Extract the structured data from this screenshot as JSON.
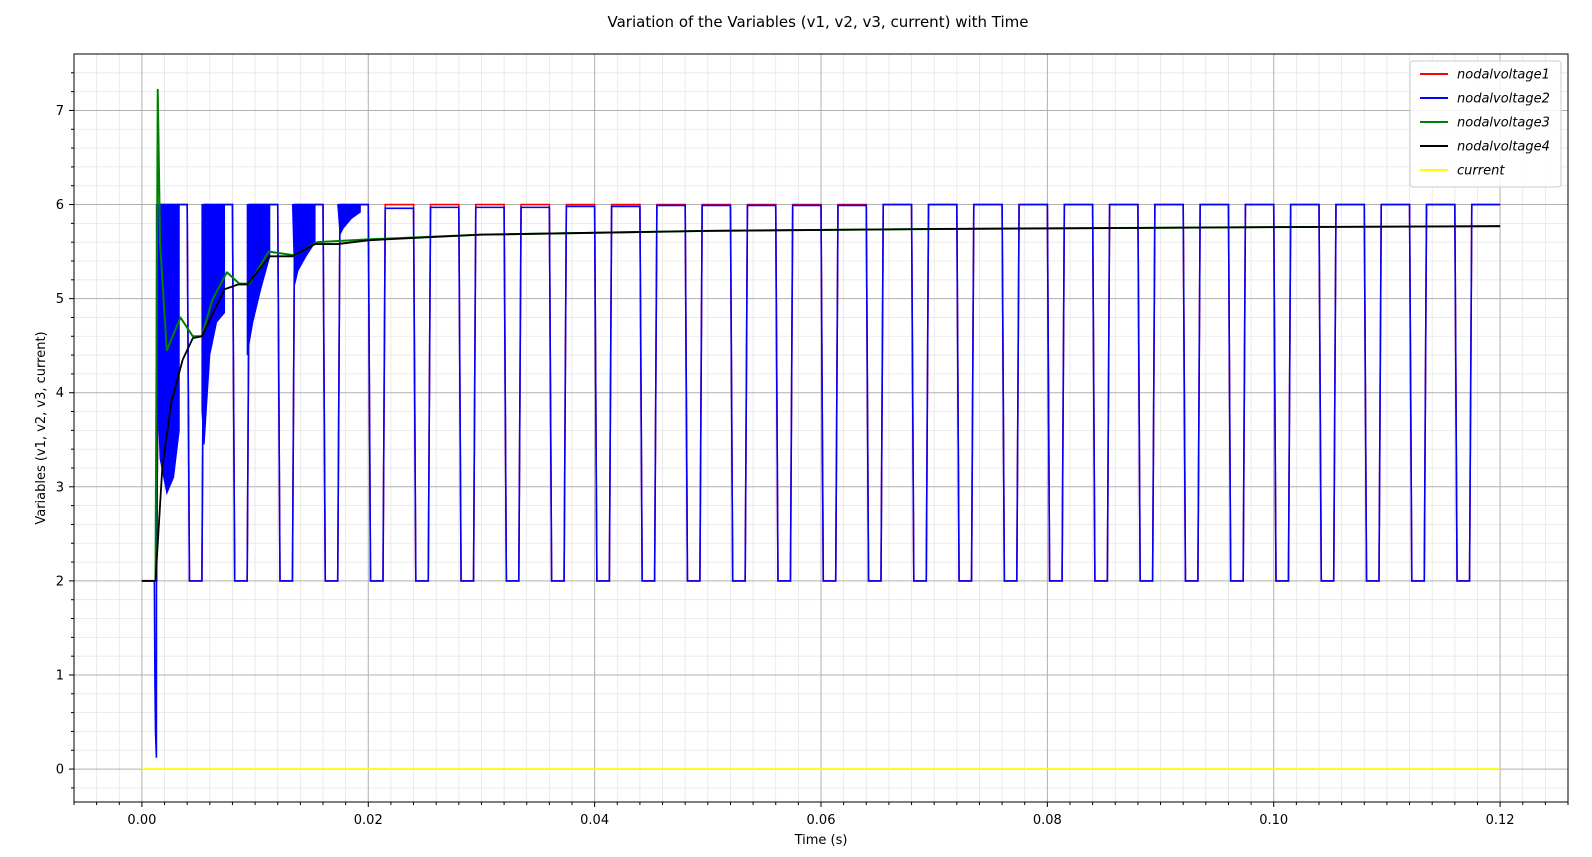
{
  "chart_data": {
    "type": "line",
    "title": "Variation of the Variables (v1, v2, v3, current) with Time",
    "xlabel": "Time (s)",
    "ylabel": "Variables (v1, v2, v3, current)",
    "xlim": [
      -0.006,
      0.126
    ],
    "ylim": [
      -0.35,
      7.6
    ],
    "x_ticks": [
      0.0,
      0.02,
      0.04,
      0.06,
      0.08,
      0.1,
      0.12
    ],
    "x_tick_labels": [
      "0.00",
      "0.02",
      "0.04",
      "0.06",
      "0.08",
      "0.10",
      "0.12"
    ],
    "y_ticks": [
      0,
      1,
      2,
      3,
      4,
      5,
      6,
      7
    ],
    "y_tick_labels": [
      "0",
      "1",
      "2",
      "3",
      "4",
      "5",
      "6",
      "7"
    ],
    "grid": "major and minor",
    "legend_position": "top-right",
    "pwm": {
      "first_edge": 0.0013,
      "period": 0.004,
      "low_duration": 0.0013,
      "high_level": 6,
      "low_level": 2,
      "t_end": 0.12
    },
    "series": [
      {
        "name": "nodalvoltage1",
        "color": "#ff0000",
        "waveform": "square",
        "values_summary": {
          "start": 2,
          "high": 6,
          "low": 2
        }
      },
      {
        "name": "nodalvoltage2",
        "color": "#0000ff",
        "waveform": "square",
        "x": [
          0.0,
          0.0011,
          0.0013,
          0.002,
          0.0025,
          0.0033,
          0.0053,
          0.006,
          0.0073,
          0.0093,
          0.0113,
          0.0133,
          0.0153,
          0.0173,
          0.0213,
          0.0253,
          0.0333,
          0.0413,
          0.0613,
          0.0813,
          0.12
        ],
        "values": [
          2.0,
          0.12,
          6.0,
          2.93,
          3.3,
          3.6,
          3.45,
          4.6,
          2.0,
          4.4,
          5.4,
          5.15,
          5.52,
          5.7,
          5.96,
          5.97,
          5.98,
          5.99,
          6.0,
          6.0,
          2.0
        ]
      },
      {
        "name": "nodalvoltage3",
        "color": "#008000",
        "waveform": "envelope",
        "x": [
          0.0,
          0.0012,
          0.0014,
          0.0016,
          0.0022,
          0.0034,
          0.0045,
          0.0053,
          0.0062,
          0.0075,
          0.0086,
          0.0095,
          0.0112,
          0.0135,
          0.0155,
          0.02,
          0.03,
          0.05,
          0.07,
          0.1,
          0.12
        ],
        "values": [
          2.0,
          2.0,
          7.22,
          5.6,
          4.45,
          4.8,
          4.6,
          4.6,
          4.98,
          5.28,
          5.16,
          5.16,
          5.5,
          5.46,
          5.6,
          5.63,
          5.68,
          5.72,
          5.74,
          5.76,
          5.77
        ]
      },
      {
        "name": "nodalvoltage4",
        "color": "#000000",
        "waveform": "envelope",
        "x": [
          0.0,
          0.0012,
          0.0018,
          0.0026,
          0.0036,
          0.0045,
          0.0053,
          0.0073,
          0.0085,
          0.0093,
          0.0113,
          0.0133,
          0.0153,
          0.0173,
          0.02,
          0.03,
          0.05,
          0.07,
          0.1,
          0.12
        ],
        "values": [
          2.0,
          2.0,
          3.2,
          3.9,
          4.35,
          4.58,
          4.6,
          5.1,
          5.15,
          5.15,
          5.45,
          5.45,
          5.58,
          5.58,
          5.62,
          5.68,
          5.72,
          5.74,
          5.76,
          5.77
        ]
      },
      {
        "name": "current",
        "color": "#ffff00",
        "waveform": "constant",
        "x": [
          0.0,
          0.12
        ],
        "values": [
          0.0,
          0.0
        ]
      }
    ]
  }
}
